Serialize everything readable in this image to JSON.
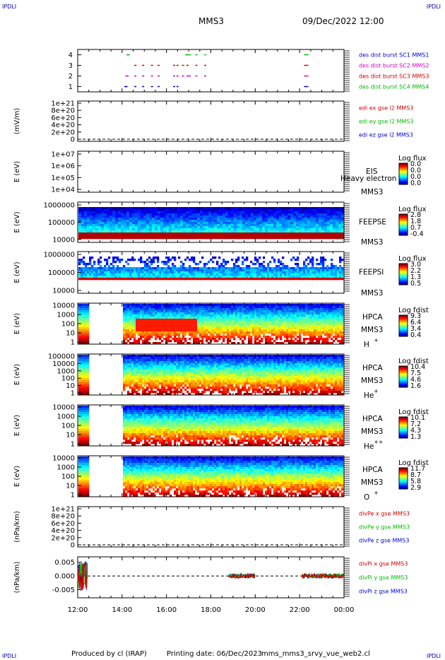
{
  "header": {
    "corner_tl": "IPDLI",
    "corner_tr": "IPDLI",
    "spacecraft": "MMS3",
    "datetime": "09/Dec/2022 12:00"
  },
  "footer": {
    "corner_bl": "IPDLI",
    "corner_br": "IPDLI",
    "produced_by": "Produced by cl (IRAP)",
    "printing_date": "Printing date: 06/Dec/2023",
    "filename": "mms_mms3_srvy_vue_web2.cl"
  },
  "colors": {
    "blue": "#0000cc",
    "magenta": "#cc00cc",
    "red": "#cc0000",
    "green": "#00bb00"
  },
  "chart_data": [
    {
      "type": "scatter",
      "id": "burst",
      "ylim": [
        0.5,
        4.5
      ],
      "yticks": [
        "1",
        "2",
        "3",
        "4"
      ],
      "legend": [
        {
          "text": "des dist burst SC1 MMS1",
          "color": "#0000cc"
        },
        {
          "text": "des dist burst SC2 MMS2",
          "color": "#cc00cc"
        },
        {
          "text": "des dist burst SC3 MMS3",
          "color": "#cc0000"
        },
        {
          "text": "des dist burst SC4 MMS4",
          "color": "#00bb00"
        }
      ],
      "series": [
        {
          "y": 1,
          "color": "#0000cc",
          "x": [
            14.1,
            14.15,
            14.55,
            14.9,
            15.3,
            15.6,
            16.3,
            16.45,
            22.2,
            22.3
          ]
        },
        {
          "y": 2,
          "color": "#cc00cc",
          "x": [
            14.15,
            14.2,
            14.55,
            14.9,
            15.3,
            15.6,
            16.3,
            16.45,
            16.7,
            16.9,
            17.0,
            17.3,
            17.7,
            22.2,
            22.3
          ]
        },
        {
          "y": 3,
          "color": "#cc0000",
          "x": [
            14.55,
            14.9,
            15.3,
            15.6,
            16.3,
            16.45,
            16.7,
            16.9,
            17.3,
            17.7,
            22.2,
            22.3
          ]
        },
        {
          "y": 4,
          "color": "#00bb00",
          "x": [
            14.2,
            14.25,
            16.85,
            16.9,
            17.0,
            17.3,
            17.7,
            22.2,
            22.3
          ]
        }
      ]
    },
    {
      "type": "line",
      "id": "edi",
      "ylabel": "(mV/m)",
      "yticks": [
        "0",
        "2e+20",
        "4e+20",
        "6e+20",
        "8e+20",
        "1e+21"
      ],
      "legend": [
        {
          "text": "edi ex gse l2 MMS3",
          "color": "#cc0000"
        },
        {
          "text": "edi ey gse l2 MMS3",
          "color": "#00bb00"
        },
        {
          "text": "edi ez gse l2 MMS3",
          "color": "#0000cc"
        }
      ]
    },
    {
      "type": "heatmap",
      "id": "eis",
      "ylabel": "E (eV)",
      "yticks": [
        "1e+04",
        "1e+05",
        "1e+06",
        "1e+07"
      ],
      "instrument": "EIS",
      "overlay": "Heavy electron to",
      "sc": "MMS3",
      "colorbar": {
        "title": "Log flux",
        "ticks": [
          "0.0",
          "0.0",
          "0.0",
          "0.0"
        ]
      }
    },
    {
      "type": "heatmap",
      "id": "feepse",
      "ylabel": "E (eV)",
      "yticks": [
        "10000",
        "100000",
        "1000000"
      ],
      "instrument": "FEEPSE",
      "sc": "MMS3",
      "colorbar": {
        "title": "Log flux",
        "ticks": [
          "2.8",
          "1.8",
          "0.7",
          "-0.4"
        ]
      }
    },
    {
      "type": "heatmap",
      "id": "feepsi",
      "ylabel": "E (eV)",
      "yticks": [
        "10000",
        "100000",
        "1000000"
      ],
      "instrument": "FEEPSI",
      "sc": "MMS3",
      "colorbar": {
        "title": "Log flux",
        "ticks": [
          "3.0",
          "2.2",
          "1.3",
          "0.5"
        ]
      }
    },
    {
      "type": "heatmap",
      "id": "hpca_h",
      "ylabel": "E (eV)",
      "yticks": [
        "1",
        "10",
        "100",
        "1000",
        "10000"
      ],
      "instrument": "HPCA",
      "sc": "MMS3",
      "species": "H",
      "charge": "+",
      "colorbar": {
        "title": "Log fdist",
        "ticks": [
          "9.3",
          "6.4",
          "3.4",
          "0.4"
        ]
      }
    },
    {
      "type": "heatmap",
      "id": "hpca_he",
      "ylabel": "E (eV)",
      "yticks": [
        "1",
        "10",
        "100",
        "1000",
        "10000",
        "100000"
      ],
      "instrument": "HPCA",
      "sc": "MMS3",
      "species": "He",
      "charge": "+",
      "colorbar": {
        "title": "Log fdist",
        "ticks": [
          "10.4",
          "7.5",
          "4.6",
          "1.6"
        ]
      }
    },
    {
      "type": "heatmap",
      "id": "hpca_he2",
      "ylabel": "E (eV)",
      "yticks": [
        "1",
        "10",
        "100",
        "1000",
        "10000"
      ],
      "instrument": "HPCA",
      "sc": "MMS3",
      "species": "He",
      "charge": "++",
      "colorbar": {
        "title": "Log fdist",
        "ticks": [
          "10.1",
          "7.2",
          "4.3",
          "1.3"
        ]
      }
    },
    {
      "type": "heatmap",
      "id": "hpca_o",
      "ylabel": "E (eV)",
      "yticks": [
        "1",
        "10",
        "100",
        "1000",
        "10000"
      ],
      "instrument": "HPCA",
      "sc": "MMS3",
      "species": "O",
      "charge": "+",
      "colorbar": {
        "title": "Log fdist",
        "ticks": [
          "11.7",
          "8.7",
          "5.8",
          "2.9"
        ]
      }
    },
    {
      "type": "line",
      "id": "divpe",
      "ylabel": "(nPa/km)",
      "yticks": [
        "0",
        "2e+20",
        "4e+20",
        "6e+20",
        "8e+20",
        "1e+21"
      ],
      "legend": [
        {
          "text": "divPe x gse MMS3",
          "color": "#cc0000"
        },
        {
          "text": "divPe y gse MMS3",
          "color": "#00bb00"
        },
        {
          "text": "divPe z gse MMS3",
          "color": "#0000cc"
        }
      ]
    },
    {
      "type": "line",
      "id": "divpi",
      "ylabel": "(nPa/km)",
      "ylim": [
        -0.008,
        0.007
      ],
      "yticks": [
        "-0.005",
        "0.000",
        "0.005"
      ],
      "ytick_values": [
        -0.005,
        0.0,
        0.005
      ],
      "legend": [
        {
          "text": "divPi x gse MMS3",
          "color": "#cc0000"
        },
        {
          "text": "divPi y gse MMS3",
          "color": "#00bb00"
        },
        {
          "text": "divPi z gse MMS3",
          "color": "#0000cc"
        }
      ],
      "segments": [
        [
          12.0,
          12.45
        ],
        [
          18.8,
          20.0
        ],
        [
          22.1,
          24.0
        ]
      ]
    }
  ],
  "x_axis": {
    "ticks": [
      "12:00",
      "14:00",
      "16:00",
      "18:00",
      "20:00",
      "22:00",
      "00:00"
    ],
    "xlim": [
      12,
      24
    ]
  }
}
